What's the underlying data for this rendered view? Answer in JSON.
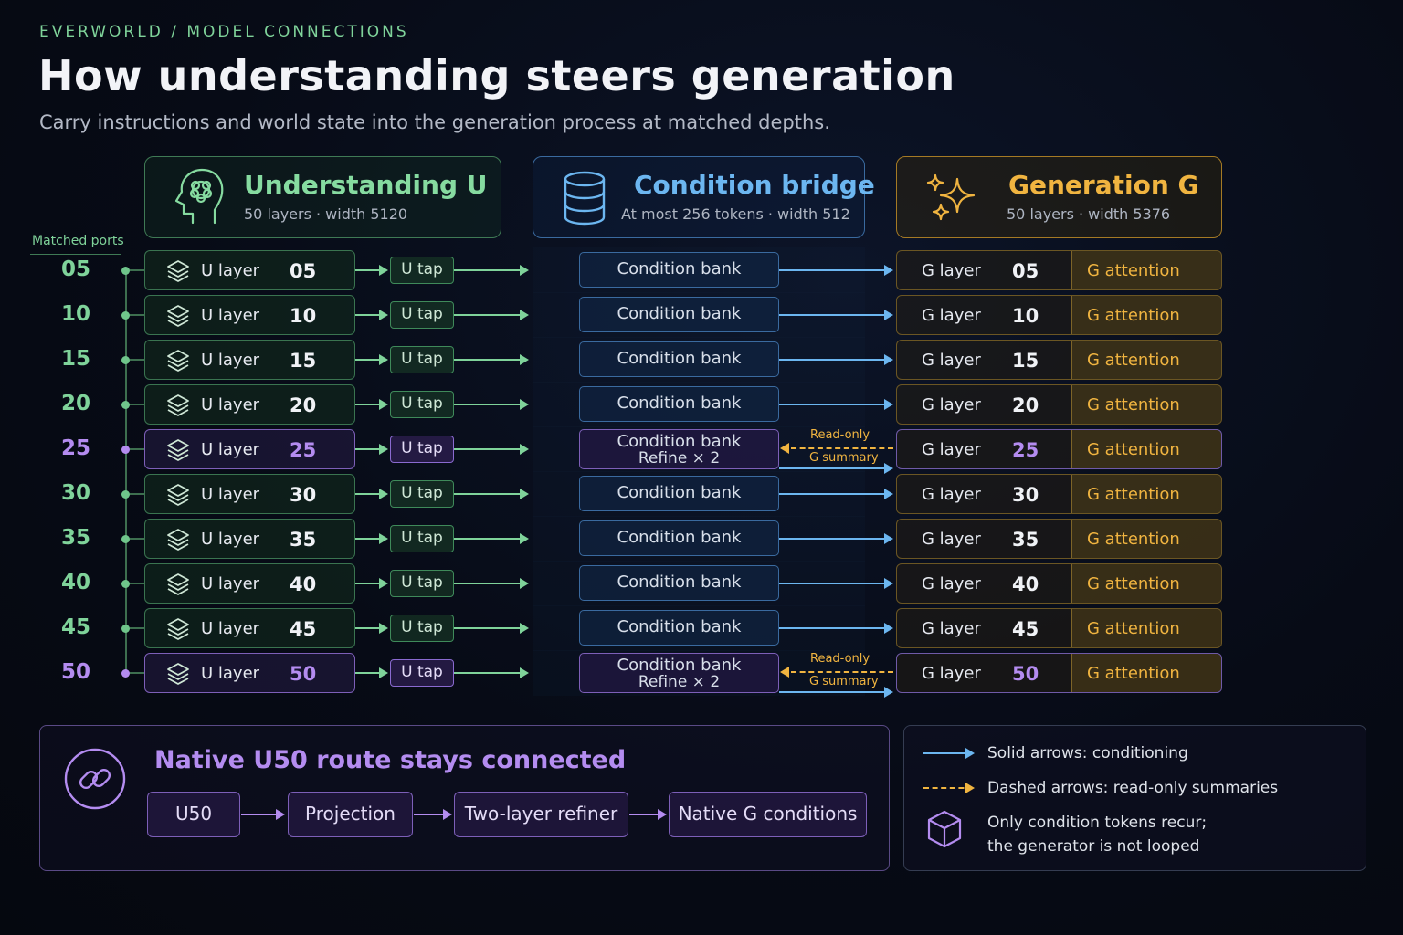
{
  "breadcrumb": "EVERWORLD / MODEL CONNECTIONS",
  "title": "How understanding steers generation",
  "subtitle": "Carry instructions and world state into the generation process at matched depths.",
  "columns": {
    "understanding": {
      "name": "Understanding U",
      "sub": "50 layers · width 5120",
      "icon": "brain-head-icon",
      "color": "#86dba0"
    },
    "bridge": {
      "name": "Condition bridge",
      "sub": "At most 256 tokens · width 512",
      "icon": "database-icon",
      "color": "#6cb6f0"
    },
    "generation": {
      "name": "Generation G",
      "sub": "50 layers · width 5376",
      "icon": "sparkles-icon",
      "color": "#f0b440"
    }
  },
  "ports_label": "Matched ports",
  "labels": {
    "u_layer": "U layer",
    "u_tap": "U tap",
    "condition_bank": "Condition bank",
    "refine": "Refine × 2",
    "g_layer": "G layer",
    "g_attention": "G attention",
    "read_only": "Read-only",
    "g_summary": "G summary"
  },
  "rows": [
    {
      "n": "05",
      "refine": false
    },
    {
      "n": "10",
      "refine": false
    },
    {
      "n": "15",
      "refine": false
    },
    {
      "n": "20",
      "refine": false
    },
    {
      "n": "25",
      "refine": true
    },
    {
      "n": "30",
      "refine": false
    },
    {
      "n": "35",
      "refine": false
    },
    {
      "n": "40",
      "refine": false
    },
    {
      "n": "45",
      "refine": false
    },
    {
      "n": "50",
      "refine": true
    }
  ],
  "route": {
    "title": "Native U50 route stays connected",
    "icon": "link-icon",
    "steps": [
      "U50",
      "Projection",
      "Two-layer refiner",
      "Native G conditions"
    ]
  },
  "legend": {
    "solid": "Solid arrows: conditioning",
    "dashed": "Dashed arrows: read-only summaries",
    "cube_line1": "Only condition tokens recur;",
    "cube_line2": "the generator is not looped"
  },
  "colors": {
    "u": "#7fd39a",
    "bridge": "#6cb6f0",
    "g": "#f0b440",
    "highlight": "#b48cf0"
  }
}
